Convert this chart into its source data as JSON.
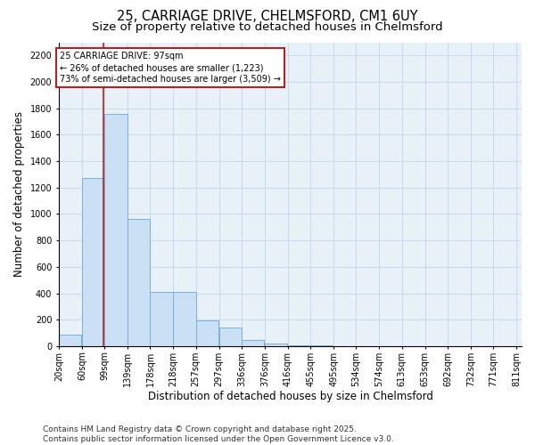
{
  "title_line1": "25, CARRIAGE DRIVE, CHELMSFORD, CM1 6UY",
  "title_line2": "Size of property relative to detached houses in Chelmsford",
  "xlabel": "Distribution of detached houses by size in Chelmsford",
  "ylabel": "Number of detached properties",
  "bar_left_edges": [
    20,
    60,
    99,
    139,
    178,
    218,
    257,
    297,
    336,
    376,
    416,
    455,
    495,
    534,
    574,
    613,
    653,
    692,
    732,
    771
  ],
  "bar_widths": [
    39,
    39,
    39,
    39,
    39,
    39,
    39,
    39,
    39,
    39,
    39,
    39,
    39,
    39,
    39,
    39,
    39,
    39,
    39,
    39
  ],
  "bar_heights": [
    85,
    1270,
    1760,
    960,
    410,
    410,
    195,
    140,
    45,
    20,
    8,
    4,
    2,
    1,
    1,
    0,
    0,
    0,
    0,
    0
  ],
  "bar_color": "#cce0f5",
  "bar_edge_color": "#7ab0d8",
  "grid_color": "#c8d8ed",
  "bg_color": "#e8f0f8",
  "vline_x": 97,
  "vline_color": "#b22222",
  "annotation_text": "25 CARRIAGE DRIVE: 97sqm\n← 26% of detached houses are smaller (1,223)\n73% of semi-detached houses are larger (3,509) →",
  "annotation_box_color": "#b22222",
  "ylim": [
    0,
    2300
  ],
  "yticks": [
    0,
    200,
    400,
    600,
    800,
    1000,
    1200,
    1400,
    1600,
    1800,
    2000,
    2200
  ],
  "tick_labels": [
    "20sqm",
    "60sqm",
    "99sqm",
    "139sqm",
    "178sqm",
    "218sqm",
    "257sqm",
    "297sqm",
    "336sqm",
    "376sqm",
    "416sqm",
    "455sqm",
    "495sqm",
    "534sqm",
    "574sqm",
    "613sqm",
    "653sqm",
    "692sqm",
    "732sqm",
    "771sqm",
    "811sqm"
  ],
  "footnote": "Contains HM Land Registry data © Crown copyright and database right 2025.\nContains public sector information licensed under the Open Government Licence v3.0.",
  "title_fontsize": 10.5,
  "subtitle_fontsize": 9.5,
  "label_fontsize": 8.5,
  "tick_fontsize": 7,
  "footnote_fontsize": 6.5
}
